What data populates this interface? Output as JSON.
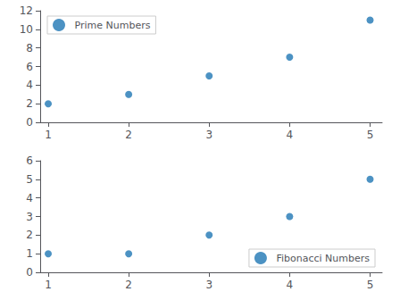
{
  "chart_data": [
    {
      "type": "scatter",
      "x": [
        1,
        2,
        3,
        4,
        5
      ],
      "series": [
        {
          "name": "Prime Numbers",
          "color": "#1f77b4",
          "values": [
            2,
            3,
            5,
            7,
            11
          ]
        }
      ],
      "xlim": [
        0.9,
        5.15
      ],
      "xticks": [
        1,
        2,
        3,
        4,
        5
      ],
      "ylim": [
        0,
        12
      ],
      "yticks": [
        0,
        2,
        4,
        6,
        8,
        10,
        12
      ],
      "legend": "upper left",
      "grid": false
    },
    {
      "type": "scatter",
      "x": [
        1,
        2,
        3,
        4,
        5
      ],
      "series": [
        {
          "name": "Fibonacci Numbers",
          "color": "#1f77b4",
          "values": [
            1,
            1,
            2,
            3,
            5
          ]
        }
      ],
      "xlim": [
        0.9,
        5.15
      ],
      "xticks": [
        1,
        2,
        3,
        4,
        5
      ],
      "ylim": [
        0,
        6
      ],
      "yticks": [
        0,
        1,
        2,
        3,
        4,
        5,
        6
      ],
      "legend": "lower right",
      "grid": false
    }
  ]
}
